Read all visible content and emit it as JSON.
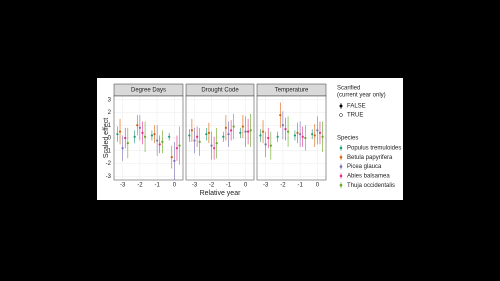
{
  "chart_data": [
    {
      "type": "pointrange",
      "title": "Degree Days",
      "xlim": [
        -3.5,
        0.5
      ],
      "xticks": [
        -3,
        -2,
        -1,
        0
      ],
      "ylim": [
        -3.3,
        3.3
      ],
      "yticks": [
        -3,
        -2,
        -1,
        0,
        1,
        2,
        3
      ],
      "grid": true,
      "x": [
        -3,
        -2,
        -1,
        0
      ],
      "series": [
        {
          "name": "Populus tremuloides",
          "color": "#1b9e77",
          "values": [
            0.3,
            0.1,
            0.2,
            0.1
          ],
          "errors": [
            0.6,
            0.5,
            0.4,
            0.3
          ]
        },
        {
          "name": "Betula papyrifera",
          "color": "#d95f02",
          "values": [
            0.5,
            1.0,
            0.3,
            -1.5
          ],
          "errors": [
            1.0,
            0.8,
            0.7,
            0.9
          ]
        },
        {
          "name": "Picea glauca",
          "color": "#7570b3",
          "values": [
            -0.8,
            0.8,
            -0.2,
            -1.8
          ],
          "errors": [
            1.0,
            1.0,
            1.2,
            1.5
          ]
        },
        {
          "name": "Abies balsamea",
          "color": "#e7298a",
          "values": [
            0.0,
            0.4,
            -0.5,
            -0.8
          ],
          "errors": [
            0.8,
            0.9,
            0.7,
            1.0
          ]
        },
        {
          "name": "Thuja occidentalis",
          "color": "#66a61e",
          "values": [
            -0.4,
            0.1,
            -0.3,
            -0.6
          ],
          "errors": [
            1.2,
            1.2,
            0.9,
            1.5
          ]
        }
      ]
    },
    {
      "type": "pointrange",
      "title": "Drought Code",
      "xlim": [
        -3.5,
        0.5
      ],
      "xticks": [
        -3,
        -2,
        -1,
        0
      ],
      "ylim": [
        -3.3,
        3.3
      ],
      "yticks": [
        -3,
        -2,
        -1,
        0,
        1,
        2,
        3
      ],
      "grid": true,
      "x": [
        -3,
        -2,
        -1,
        0
      ],
      "series": [
        {
          "name": "Populus tremuloides",
          "color": "#1b9e77",
          "values": [
            0.2,
            0.3,
            0.1,
            0.4
          ],
          "errors": [
            0.5,
            0.5,
            0.4,
            0.4
          ]
        },
        {
          "name": "Betula papyrifera",
          "color": "#d95f02",
          "values": [
            0.6,
            0.4,
            0.8,
            0.9
          ],
          "errors": [
            0.9,
            0.8,
            1.0,
            0.9
          ]
        },
        {
          "name": "Picea glauca",
          "color": "#7570b3",
          "values": [
            -0.2,
            -0.6,
            0.3,
            0.5
          ],
          "errors": [
            1.0,
            1.1,
            1.0,
            1.2
          ]
        },
        {
          "name": "Abies balsamea",
          "color": "#e7298a",
          "values": [
            0.1,
            -0.8,
            0.6,
            0.5
          ],
          "errors": [
            0.8,
            0.9,
            0.8,
            1.0
          ]
        },
        {
          "name": "Thuja occidentalis",
          "color": "#66a61e",
          "values": [
            -0.3,
            -0.4,
            0.9,
            0.6
          ],
          "errors": [
            1.1,
            1.2,
            1.0,
            1.3
          ]
        }
      ]
    },
    {
      "type": "pointrange",
      "title": "Temperature",
      "xlim": [
        -3.5,
        0.5
      ],
      "xticks": [
        -3,
        -2,
        -1,
        0
      ],
      "ylim": [
        -3.3,
        3.3
      ],
      "yticks": [
        -3,
        -2,
        -1,
        0,
        1,
        2,
        3
      ],
      "grid": true,
      "x": [
        -3,
        -2,
        -1,
        0
      ],
      "series": [
        {
          "name": "Populus tremuloides",
          "color": "#1b9e77",
          "values": [
            0.2,
            0.1,
            0.2,
            0.3
          ],
          "errors": [
            0.5,
            0.4,
            0.4,
            0.4
          ]
        },
        {
          "name": "Betula papyrifera",
          "color": "#d95f02",
          "values": [
            0.5,
            1.8,
            0.4,
            0.2
          ],
          "errors": [
            0.9,
            1.0,
            0.8,
            0.9
          ]
        },
        {
          "name": "Picea glauca",
          "color": "#7570b3",
          "values": [
            -0.5,
            1.0,
            0.3,
            0.6
          ],
          "errors": [
            1.0,
            1.1,
            1.0,
            1.1
          ]
        },
        {
          "name": "Abies balsamea",
          "color": "#e7298a",
          "values": [
            0.0,
            0.7,
            0.1,
            0.4
          ],
          "errors": [
            0.8,
            0.9,
            0.8,
            0.9
          ]
        },
        {
          "name": "Thuja occidentalis",
          "color": "#66a61e",
          "values": [
            -0.6,
            0.5,
            0.0,
            0.1
          ],
          "errors": [
            1.1,
            1.2,
            1.0,
            1.2
          ]
        }
      ]
    }
  ],
  "x_label": "Relative year",
  "y_label": "Scaled effect",
  "legend": {
    "scarified_title": [
      "Scarified",
      "(current year only)"
    ],
    "scarified_items": [
      "FALSE",
      "TRUE"
    ],
    "species_title": "Species"
  }
}
